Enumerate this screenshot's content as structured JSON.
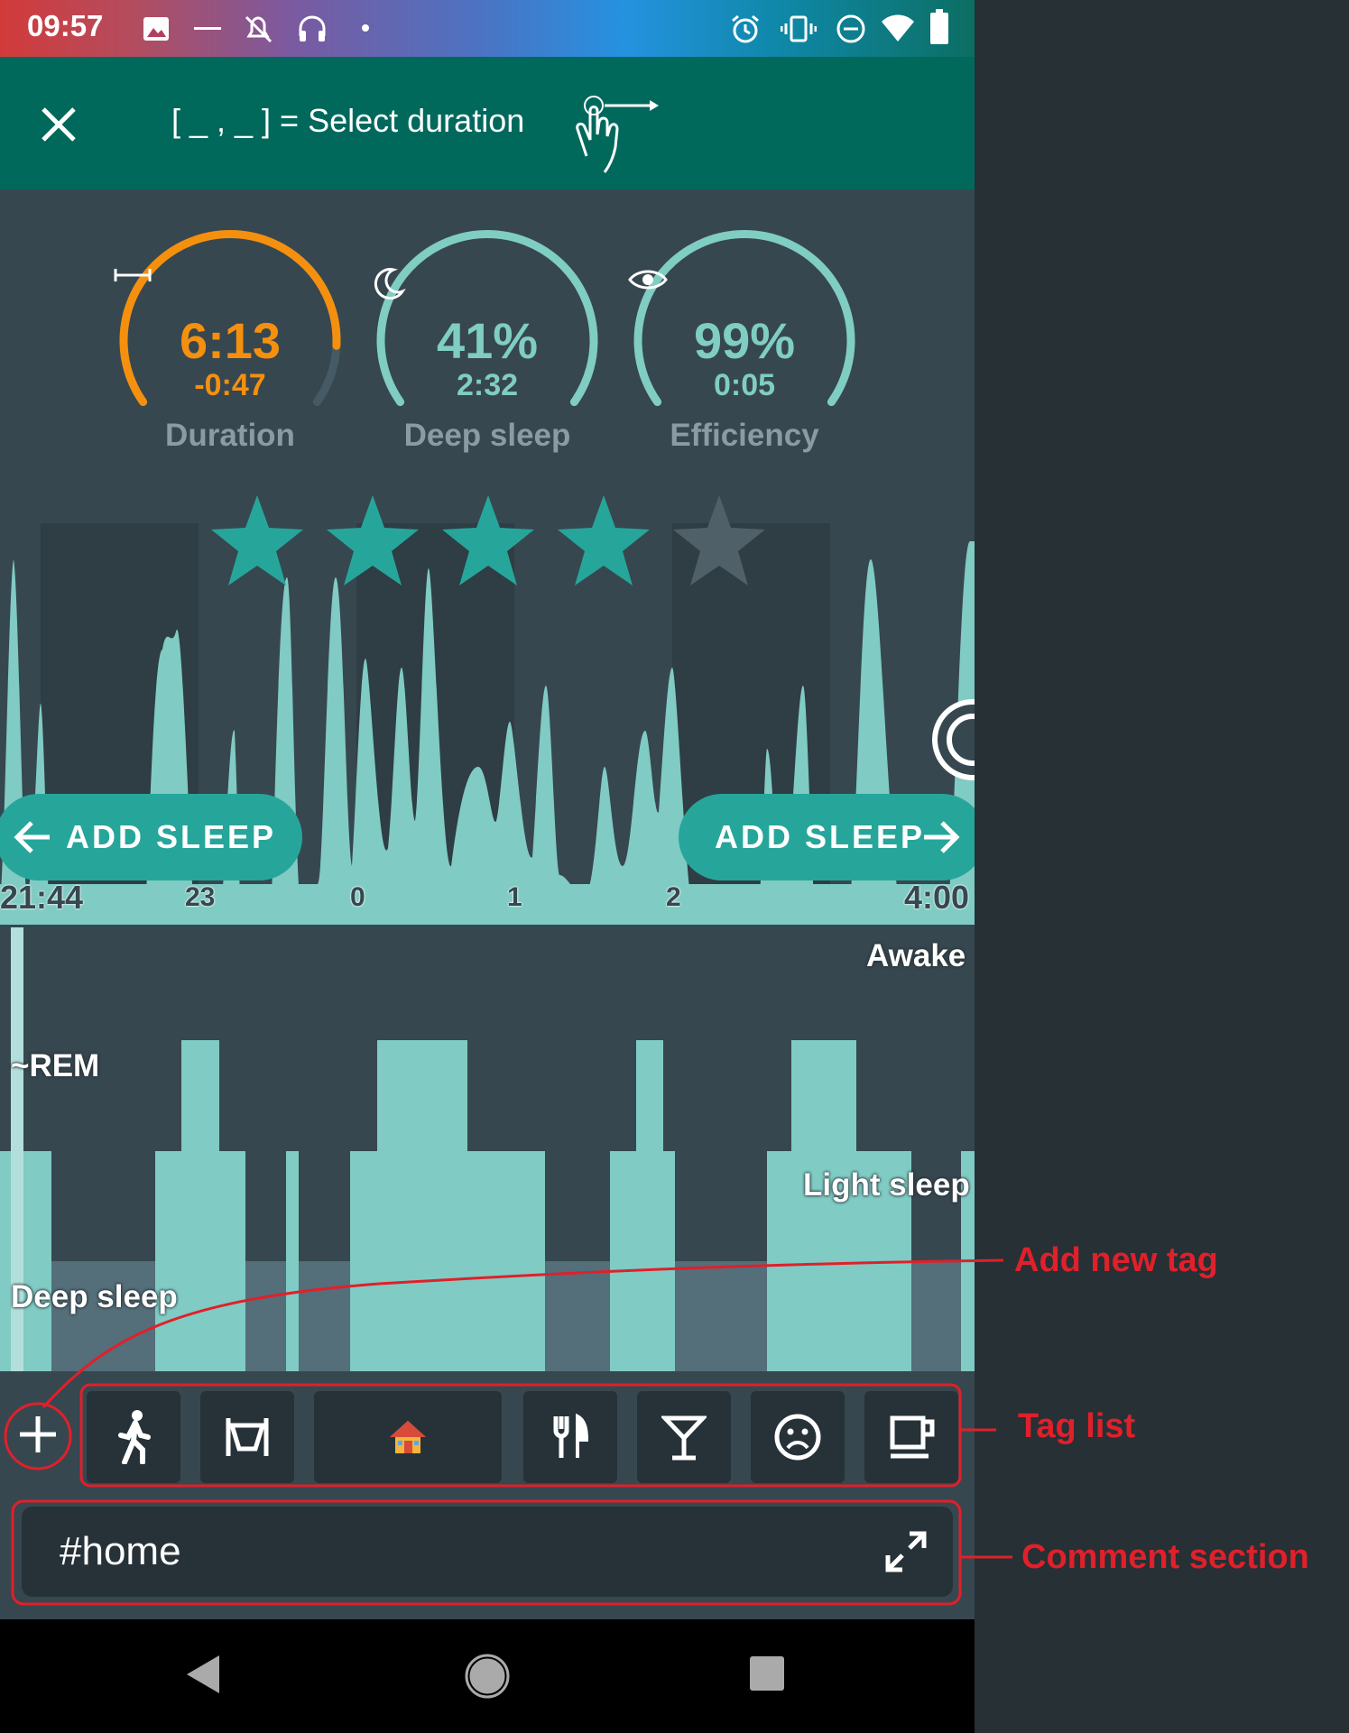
{
  "status_bar": {
    "time": "09:57",
    "icons": [
      "image-icon",
      "dash-icon",
      "notifications-off-icon",
      "headphones-icon",
      "dot-icon",
      "alarm-icon",
      "vibrate-icon",
      "do-not-disturb-icon",
      "wifi-icon",
      "battery-icon"
    ]
  },
  "toolbar": {
    "hint_text": "[ _ , _ ] = Select duration",
    "close_icon": "close-icon",
    "gesture_icon": "swipe-gesture-icon"
  },
  "gauges": [
    {
      "label": "Duration",
      "value": "6:13",
      "sub": "-0:47",
      "icon": "duration-icon",
      "color": "#f5900f",
      "fraction": 0.87
    },
    {
      "label": "Deep sleep",
      "value": "41%",
      "sub": "2:32",
      "icon": "moon-icon",
      "color": "#7fcdc3",
      "fraction": 1.0
    },
    {
      "label": "Efficiency",
      "value": "99%",
      "sub": "0:05",
      "icon": "eye-icon",
      "color": "#7fcdc3",
      "fraction": 1.0
    }
  ],
  "rating": {
    "stars": 4,
    "max": 5
  },
  "activity_graph": {
    "add_sleep_left": "ADD SLEEP",
    "add_sleep_right": "ADD SLEEP",
    "start_time": "21:44",
    "end_time": "4:00",
    "hour_ticks": [
      "23",
      "0",
      "1",
      "2"
    ]
  },
  "hypnogram": {
    "labels": {
      "awake": "Awake",
      "rem": "~REM",
      "light": "Light sleep",
      "deep": "Deep sleep"
    }
  },
  "tags": {
    "add_icon": "plus-icon",
    "items": [
      "walking-icon",
      "bed-icon",
      "house-icon",
      "cutlery-icon",
      "cocktail-icon",
      "sad-face-icon",
      "coffee-icon"
    ]
  },
  "comment": {
    "text": "#home",
    "expand_icon": "expand-icon"
  },
  "annotations": {
    "add_new_tag": "Add new tag",
    "tag_list": "Tag list",
    "comment_section": "Comment section"
  },
  "colors": {
    "accent": "#00695c",
    "teal": "#7fcdc3",
    "orange": "#f5900f",
    "annotation": "#e0202a"
  }
}
